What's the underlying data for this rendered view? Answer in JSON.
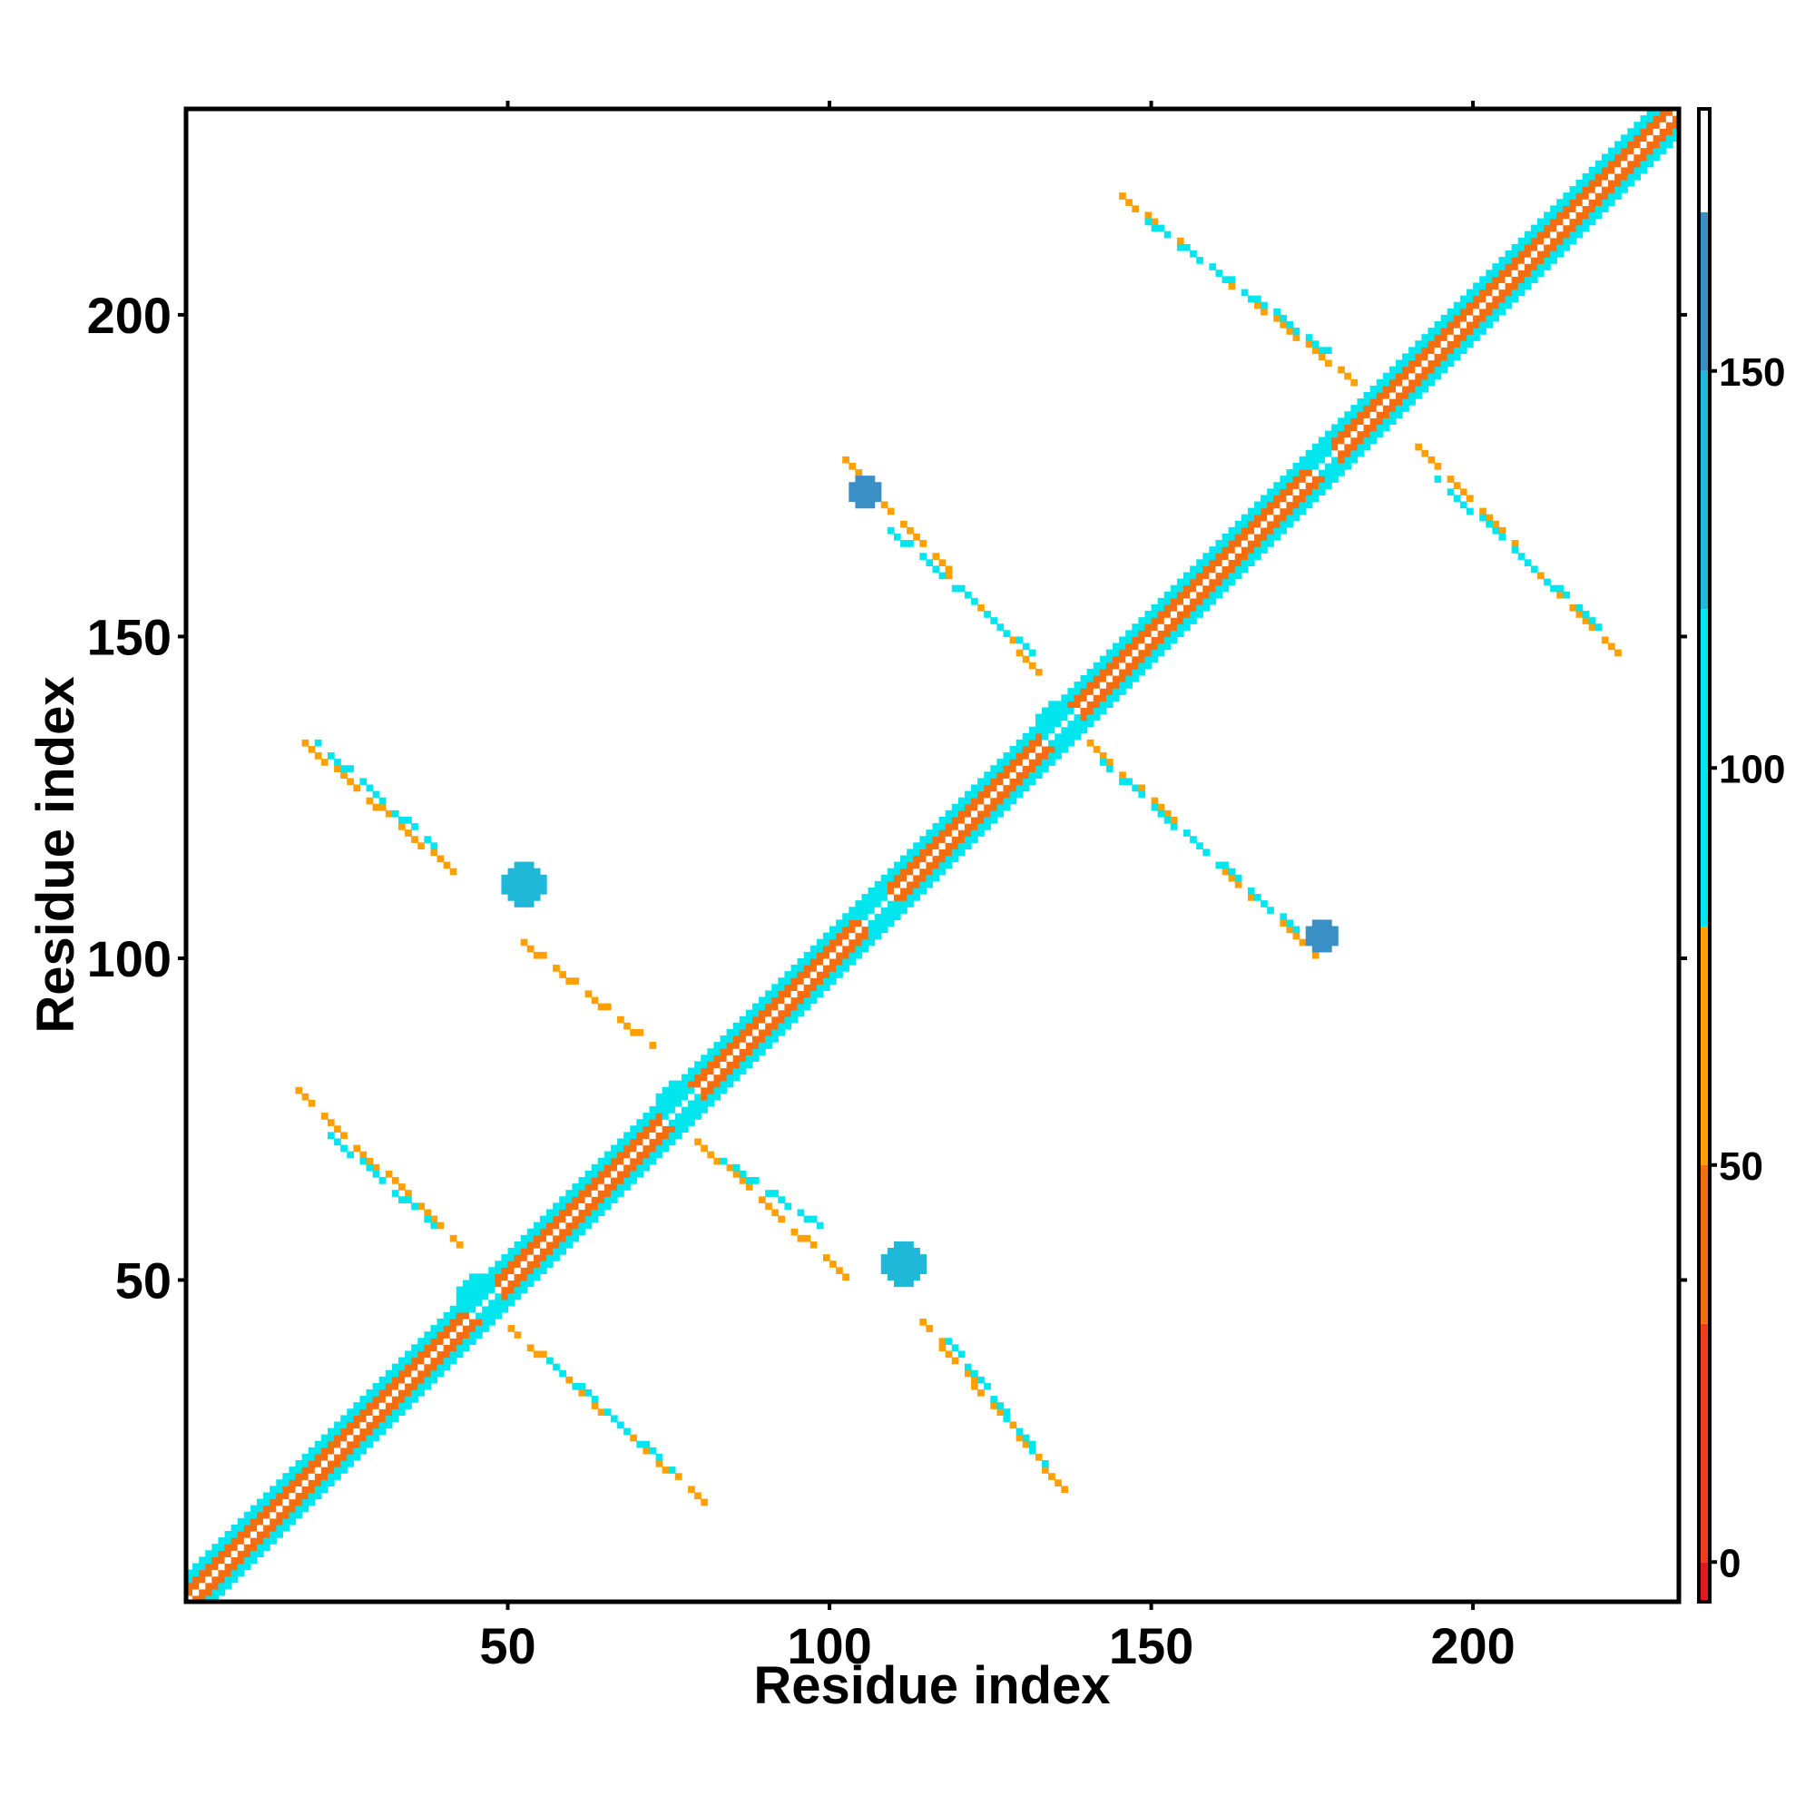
{
  "chart_data": {
    "type": "heatmap",
    "title": "",
    "xlabel": "Residue index",
    "ylabel": "Residue index",
    "xlim": [
      0,
      232
    ],
    "ylim": [
      0,
      232
    ],
    "xticks": [
      50,
      100,
      150,
      200
    ],
    "yticks": [
      50,
      100,
      150,
      200
    ],
    "grid": false,
    "colorbar": {
      "range": [
        -5,
        183
      ],
      "ticks": [
        0,
        50,
        100,
        150
      ],
      "bands": [
        {
          "from": -5,
          "to": 0,
          "color": "#e31a1c"
        },
        {
          "from": 0,
          "to": 30,
          "color": "#f03b20"
        },
        {
          "from": 30,
          "to": 50,
          "color": "#f46d0e"
        },
        {
          "from": 50,
          "to": 80,
          "color": "#ff9f00"
        },
        {
          "from": 80,
          "to": 120,
          "color": "#00e5ee"
        },
        {
          "from": 120,
          "to": 150,
          "color": "#1fb8d8"
        },
        {
          "from": 150,
          "to": 170,
          "color": "#3a8fc4"
        },
        {
          "from": 170,
          "to": 183,
          "color": "#ffffff"
        }
      ]
    },
    "contact_segments": [
      {
        "x": [
          0,
          232
        ],
        "y": [
          0,
          232
        ],
        "width": 8,
        "value": 95
      },
      {
        "x": [
          0,
          232
        ],
        "y": [
          0,
          232
        ],
        "width": 4,
        "value": 45
      },
      {
        "x": [
          0,
          232
        ],
        "y": [
          0,
          232
        ],
        "width": 1,
        "value": 65
      },
      {
        "x": [
          17,
          42
        ],
        "y": [
          79,
          55
        ],
        "width": 1,
        "value": 62
      },
      {
        "x": [
          22,
          38
        ],
        "y": [
          72,
          58
        ],
        "width": 1,
        "value": 95
      },
      {
        "x": [
          17,
          42
        ],
        "y": [
          134,
          112
        ],
        "width": 1,
        "value": 62
      },
      {
        "x": [
          20,
          38
        ],
        "y": [
          133,
          117
        ],
        "width": 1,
        "value": 95
      },
      {
        "x": [
          50,
          80
        ],
        "y": [
          42,
          15
        ],
        "width": 1,
        "value": 62
      },
      {
        "x": [
          56,
          75
        ],
        "y": [
          37,
          20
        ],
        "width": 1,
        "value": 95
      },
      {
        "x": [
          52,
          72
        ],
        "y": [
          102,
          86
        ],
        "width": 1,
        "value": 62
      },
      {
        "x": [
          78,
          102
        ],
        "y": [
          72,
          50
        ],
        "width": 1,
        "value": 62
      },
      {
        "x": [
          83,
          98
        ],
        "y": [
          68,
          58
        ],
        "width": 1,
        "value": 95
      },
      {
        "x": [
          114,
          136
        ],
        "y": [
          43,
          17
        ],
        "width": 1,
        "value": 62
      },
      {
        "x": [
          118,
          133
        ],
        "y": [
          40,
          21
        ],
        "width": 1,
        "value": 95
      },
      {
        "x": [
          102,
          133
        ],
        "y": [
          177,
          143
        ],
        "width": 1,
        "value": 62
      },
      {
        "x": [
          108,
          131
        ],
        "y": [
          167,
          147
        ],
        "width": 1,
        "value": 95
      },
      {
        "x": [
          138,
          175
        ],
        "y": [
          135,
          100
        ],
        "width": 1,
        "value": 62
      },
      {
        "x": [
          142,
          172
        ],
        "y": [
          130,
          104
        ],
        "width": 1,
        "value": 95
      },
      {
        "x": [
          145,
          181
        ],
        "y": [
          218,
          189
        ],
        "width": 1,
        "value": 62
      },
      {
        "x": [
          149,
          178
        ],
        "y": [
          214,
          193
        ],
        "width": 1,
        "value": 95
      },
      {
        "x": [
          190,
          222
        ],
        "y": [
          180,
          147
        ],
        "width": 1,
        "value": 62
      },
      {
        "x": [
          194,
          219
        ],
        "y": [
          174,
          151
        ],
        "width": 1,
        "value": 95
      }
    ],
    "contact_blobs": [
      {
        "x": 45,
        "y": 47,
        "radius": 3,
        "value": 95
      },
      {
        "x": 76,
        "y": 77,
        "radius": 3,
        "value": 95
      },
      {
        "x": 107,
        "y": 107,
        "radius": 3,
        "value": 95
      },
      {
        "x": 135,
        "y": 136,
        "radius": 3,
        "value": 95
      },
      {
        "x": 176,
        "y": 177,
        "radius": 2,
        "value": 95
      },
      {
        "x": 52,
        "y": 111,
        "radius": 3,
        "value": 125
      },
      {
        "x": 111,
        "y": 52,
        "radius": 3,
        "value": 125
      },
      {
        "x": 105,
        "y": 172,
        "radius": 2,
        "value": 155
      },
      {
        "x": 176,
        "y": 103,
        "radius": 2,
        "value": 155
      }
    ]
  }
}
